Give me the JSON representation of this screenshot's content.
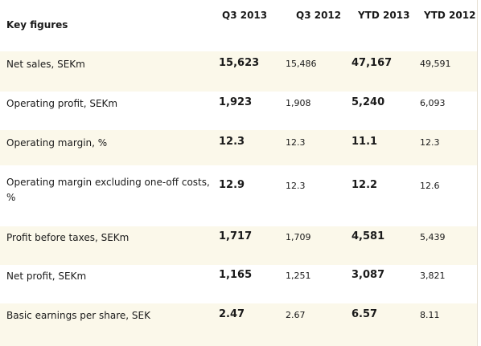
{
  "table": {
    "header": {
      "label": "Key figures",
      "col1": "Q3 2013",
      "col2": "Q3 2012",
      "col3": "YTD 2013",
      "col4": "YTD 2012"
    },
    "rows": [
      {
        "label": "Net sales, SEKm",
        "q3_2013": "15,623",
        "q3_2012": "15,486",
        "ytd_2013": "47,167",
        "ytd_2012": "49,591"
      },
      {
        "label": "Operating profit, SEKm",
        "q3_2013": "1,923",
        "q3_2012": "1,908",
        "ytd_2013": "5,240",
        "ytd_2012": "6,093"
      },
      {
        "label": "Operating margin, %",
        "q3_2013": "12.3",
        "q3_2012": "12.3",
        "ytd_2013": "11.1",
        "ytd_2012": "12.3"
      },
      {
        "label": "Operating margin excluding one-off costs, %",
        "q3_2013": "12.9",
        "q3_2012": "12.3",
        "ytd_2013": "12.2",
        "ytd_2012": "12.6"
      },
      {
        "label": "Profit before taxes, SEKm",
        "q3_2013": "1,717",
        "q3_2012": "1,709",
        "ytd_2013": "4,581",
        "ytd_2012": "5,439"
      },
      {
        "label": "Net profit, SEKm",
        "q3_2013": "1,165",
        "q3_2012": "1,251",
        "ytd_2013": "3,087",
        "ytd_2012": "3,821"
      },
      {
        "label": "Basic earnings per share, SEK",
        "q3_2013": "2.47",
        "q3_2012": "2.67",
        "ytd_2013": "6.57",
        "ytd_2012": "8.11"
      }
    ]
  },
  "colors": {
    "shaded_row": "#fbf8ea",
    "plain_row": "#ffffff",
    "text": "#1a1a1a"
  }
}
